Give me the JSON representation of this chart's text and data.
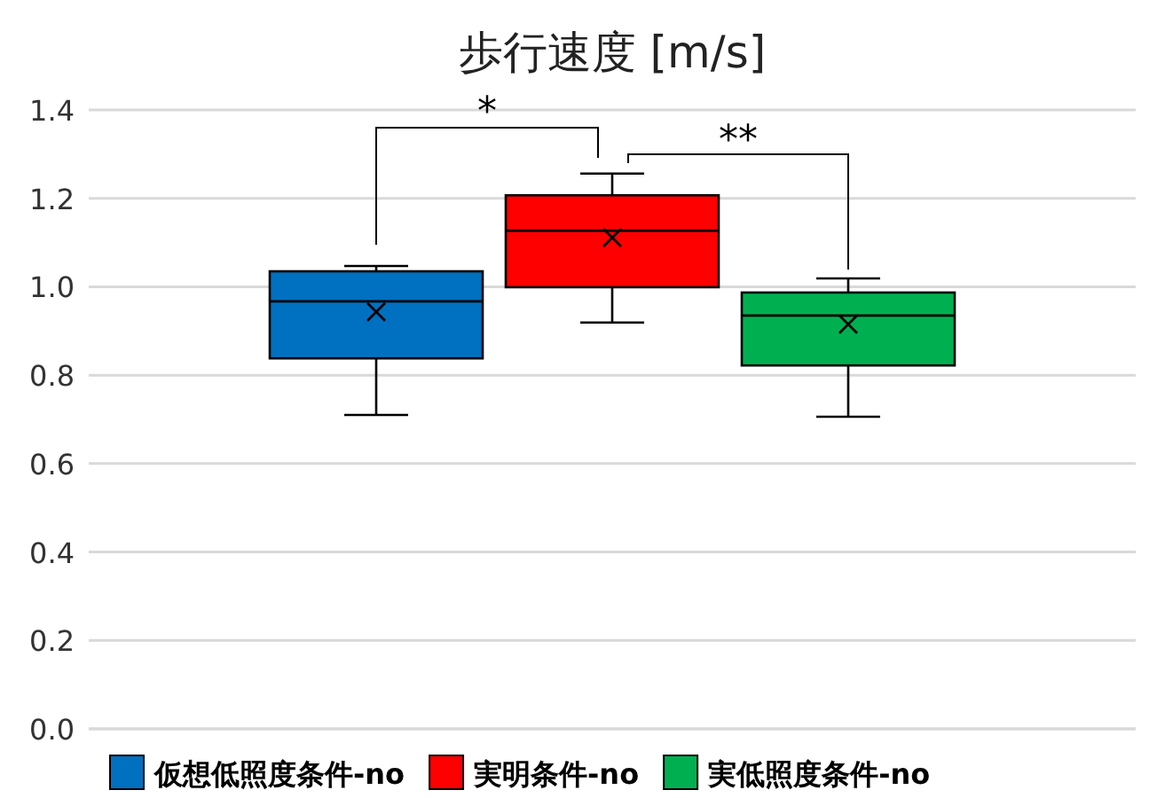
{
  "chart_data": {
    "type": "box",
    "title": "歩行速度 [m/s]",
    "categories": [
      null
    ],
    "series": [
      {
        "name": "仮想低照度条件-no",
        "color": "#0070c0",
        "boxes": [
          {
            "low": 0.71,
            "q1": 0.838,
            "median": 0.967,
            "q3": 1.035,
            "high": 1.047,
            "mean": 0.943
          }
        ]
      },
      {
        "name": "実明条件-no",
        "color": "#ff0000",
        "boxes": [
          {
            "low": 0.919,
            "q1": 0.999,
            "median": 1.127,
            "q3": 1.207,
            "high": 1.256,
            "mean": 1.111
          }
        ]
      },
      {
        "name": "実低照度条件-no",
        "color": "#00b050",
        "boxes": [
          {
            "low": 0.706,
            "q1": 0.822,
            "median": 0.935,
            "q3": 0.987,
            "high": 1.019,
            "mean": 0.915
          }
        ]
      }
    ],
    "ylim": [
      0,
      1.4
    ],
    "yticks": [
      {
        "value": 0,
        "label": "0.0"
      },
      {
        "value": 0.2,
        "label": "0.2"
      },
      {
        "value": 0.4,
        "label": "0.4"
      },
      {
        "value": 0.6,
        "label": "0.6"
      },
      {
        "value": 0.8,
        "label": "0.8"
      },
      {
        "value": 1,
        "label": "1.0"
      },
      {
        "value": 1.2,
        "label": "1.2"
      },
      {
        "value": 1.4,
        "label": "1.4"
      }
    ],
    "grid": "y",
    "legend": "bottom",
    "marker": "cross",
    "tick_labels": "y",
    "annotations": [
      "*",
      "**"
    ]
  }
}
